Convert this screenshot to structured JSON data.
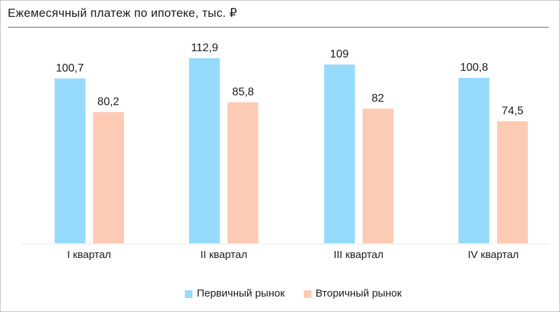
{
  "title": "Ежемесячный платеж по ипотеке, тыс. ₽",
  "colors": {
    "primary_series": "#96dbfb",
    "secondary_series": "#fdcab3",
    "text": "#1a1a1a",
    "title_divider": "#ababab",
    "axis_line": "#f3f3f3",
    "card_border": "#c7c7c7",
    "background": "#ffffff"
  },
  "chart_data": {
    "type": "bar",
    "title": "Ежемесячный платеж по ипотеке, тыс. ₽",
    "xlabel": "",
    "ylabel": "",
    "categories": [
      "I квартал",
      "II квартал",
      "III квартал",
      "IV квартал"
    ],
    "series": [
      {
        "name": "Первичный рынок",
        "color": "#96dbfb",
        "values": [
          100.7,
          112.9,
          109,
          100.8
        ],
        "labels": [
          "100,7",
          "112,9",
          "109",
          "100,8"
        ]
      },
      {
        "name": "Вторичный рынок",
        "color": "#fdcab3",
        "values": [
          80.2,
          85.8,
          82,
          74.5
        ],
        "labels": [
          "80,2",
          "85,8",
          "82",
          "74,5"
        ]
      }
    ],
    "ylim": [
      0,
      148
    ],
    "grid": false,
    "value_axis_visible": false,
    "data_labels": true,
    "legend_position": "bottom"
  }
}
